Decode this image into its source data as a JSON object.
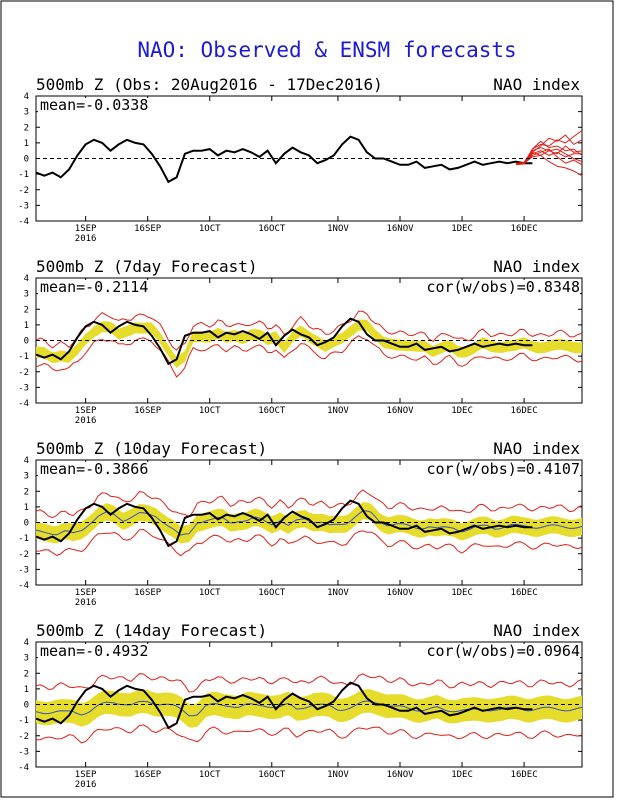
{
  "title": "NAO: Observed & ENSM forecasts",
  "colors": {
    "title": "#1b1bd6",
    "observed": "#000000",
    "ensemble_members": "#e0201a",
    "spread": "#e6dc2c",
    "ensemble_mean": "#3a52b8",
    "forecast_start": "#e0201a"
  },
  "x_ticks": [
    "1SEP",
    "16SEP",
    "1OCT",
    "16OCT",
    "1NOV",
    "16NOV",
    "1DEC",
    "16DEC"
  ],
  "x_year": "2016",
  "y_ticks": [
    "4",
    "3",
    "2",
    "1",
    "0",
    "-1",
    "-2",
    "-3",
    "-4"
  ],
  "chart_data": [
    {
      "type": "line",
      "title": "500mb Z (Obs: 20Aug2016 - 17Dec2016)",
      "right_title": "NAO index",
      "mean_label": "mean=-0.0338",
      "cor_label": "",
      "ylim": [
        -4,
        4
      ],
      "xlim_days": [
        0,
        132
      ],
      "observed": {
        "x": [
          0,
          2,
          4,
          6,
          8,
          10,
          12,
          14,
          16,
          18,
          20,
          22,
          24,
          26,
          28,
          30,
          32,
          34,
          36,
          38,
          40,
          42,
          44,
          46,
          48,
          50,
          52,
          54,
          56,
          58,
          60,
          62,
          64,
          66,
          68,
          70,
          72,
          74,
          76,
          78,
          80,
          82,
          84,
          86,
          88,
          90,
          92,
          94,
          96,
          98,
          100,
          102,
          104,
          106,
          108,
          110,
          112,
          114,
          116,
          118,
          120
        ],
        "y": [
          -0.9,
          -1.1,
          -0.9,
          -1.2,
          -0.7,
          0.2,
          0.9,
          1.2,
          1.0,
          0.5,
          0.9,
          1.2,
          1.0,
          0.9,
          0.3,
          -0.5,
          -1.5,
          -1.2,
          0.3,
          0.5,
          0.5,
          0.6,
          0.2,
          0.5,
          0.4,
          0.6,
          0.4,
          0.1,
          0.5,
          -0.3,
          0.3,
          0.7,
          0.4,
          0.2,
          -0.3,
          -0.1,
          0.2,
          0.9,
          1.4,
          1.2,
          0.4,
          0.0,
          0.0,
          -0.2,
          -0.4,
          -0.4,
          -0.2,
          -0.6,
          -0.5,
          -0.4,
          -0.7,
          -0.6,
          -0.4,
          -0.2,
          -0.4,
          -0.3,
          -0.2,
          -0.3,
          -0.2,
          -0.3,
          -0.3
        ]
      },
      "members": {
        "x": [
          118,
          120,
          122,
          124,
          126,
          128,
          130,
          132
        ],
        "series": [
          [
            -0.3,
            0.6,
            0.9,
            0.8,
            1.2,
            1.0,
            1.4,
            1.8
          ],
          [
            -0.3,
            0.4,
            0.8,
            1.3,
            1.1,
            1.5,
            0.9,
            1.2
          ],
          [
            -0.3,
            0.5,
            0.7,
            0.5,
            0.3,
            0.8,
            0.4,
            0.5
          ],
          [
            -0.3,
            0.3,
            0.5,
            0.2,
            0.4,
            0.1,
            0.3,
            0.3
          ],
          [
            -0.3,
            0.2,
            0.4,
            0.6,
            0.1,
            -0.3,
            -0.1,
            -0.4
          ],
          [
            -0.3,
            0.1,
            0.2,
            -0.2,
            -0.5,
            -0.6,
            -0.8,
            -1.1
          ],
          [
            -0.3,
            0.6,
            1.1,
            0.7,
            0.8,
            0.5,
            0.6,
            0.2
          ],
          [
            -0.3,
            0.4,
            0.2,
            0.5,
            0.6,
            0.3,
            0.0,
            -0.2
          ]
        ]
      }
    },
    {
      "type": "line",
      "title": "500mb Z (7day Forecast)",
      "right_title": "NAO index",
      "mean_label": "mean=-0.2114",
      "cor_label": "cor(w/obs)=0.8348",
      "ylim": [
        -4,
        4
      ],
      "lead": 7
    },
    {
      "type": "line",
      "title": "500mb Z (10day Forecast)",
      "right_title": "NAO index",
      "mean_label": "mean=-0.3866",
      "cor_label": "cor(w/obs)=0.4107",
      "ylim": [
        -4,
        4
      ],
      "lead": 10
    },
    {
      "type": "line",
      "title": "500mb Z (14day Forecast)",
      "right_title": "NAO index",
      "mean_label": "mean=-0.4932",
      "cor_label": "cor(w/obs)=0.0964",
      "ylim": [
        -4,
        4
      ],
      "lead": 14
    }
  ]
}
